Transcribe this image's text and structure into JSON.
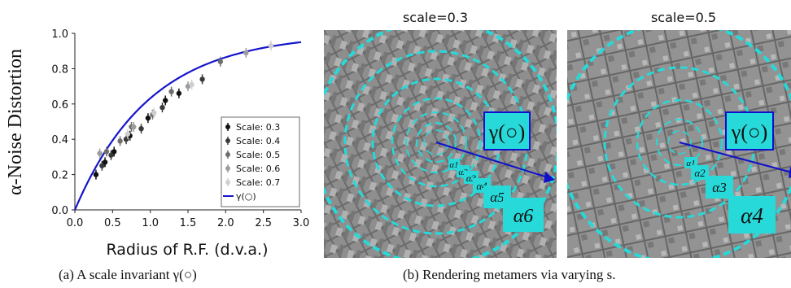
{
  "chart_data": {
    "type": "scatter",
    "ylabel": "α-Noise Distortion",
    "xlabel": "Radius of R.F. (d.v.a.)",
    "xlim": [
      0.0,
      3.0
    ],
    "ylim": [
      0.0,
      1.0
    ],
    "xticks": [
      "0.0",
      "0.5",
      "1.0",
      "1.5",
      "2.0",
      "2.5",
      "3.0"
    ],
    "yticks": [
      "0.0",
      "0.2",
      "0.4",
      "0.6",
      "0.8",
      "1.0"
    ],
    "legend_position": "lower-right",
    "series": [
      {
        "name": "Scale: 0.3",
        "color": "#111111",
        "points": [
          [
            0.28,
            0.2
          ],
          [
            0.4,
            0.27
          ],
          [
            0.52,
            0.33
          ],
          [
            0.73,
            0.42
          ],
          [
            0.97,
            0.52
          ],
          [
            1.2,
            0.62
          ],
          [
            1.38,
            0.66
          ]
        ]
      },
      {
        "name": "Scale: 0.4",
        "color": "#3a3a3a",
        "points": [
          [
            0.36,
            0.25
          ],
          [
            0.48,
            0.31
          ],
          [
            0.68,
            0.4
          ],
          [
            0.88,
            0.46
          ],
          [
            1.16,
            0.58
          ],
          [
            1.69,
            0.74
          ]
        ]
      },
      {
        "name": "Scale: 0.5",
        "color": "#6e6e6e",
        "points": [
          [
            0.42,
            0.33
          ],
          [
            0.6,
            0.39
          ],
          [
            0.75,
            0.47
          ],
          [
            1.03,
            0.54
          ],
          [
            1.28,
            0.67
          ],
          [
            1.93,
            0.84
          ]
        ]
      },
      {
        "name": "Scale: 0.6",
        "color": "#9c9c9c",
        "points": [
          [
            0.33,
            0.32
          ],
          [
            0.78,
            0.47
          ],
          [
            1.5,
            0.7
          ],
          [
            2.27,
            0.89
          ]
        ]
      },
      {
        "name": "Scale: 0.7",
        "color": "#cfcfcf",
        "points": [
          [
            0.7,
            0.43
          ],
          [
            1.05,
            0.55
          ],
          [
            1.55,
            0.71
          ],
          [
            2.6,
            0.93
          ]
        ]
      }
    ],
    "curve": {
      "name": "γ(○)",
      "color": "#1515cc",
      "formula": "1 - exp(-x)"
    }
  },
  "captions": {
    "a": "(a) A scale invariant γ(○)",
    "b": "(b) Rendering metamers via varying s."
  },
  "panels": [
    {
      "title": "scale=0.3",
      "gamma_label": "γ(○)",
      "alphas": [
        "α1",
        "α2",
        "α3",
        "α4",
        "α5",
        "α6"
      ]
    },
    {
      "title": "scale=0.5",
      "gamma_label": "γ(○)",
      "alphas": [
        "α1",
        "α2",
        "α3",
        "α4"
      ]
    }
  ],
  "colors": {
    "accent_cyan": "#27d9d9",
    "arrow_blue": "#1010cc"
  }
}
